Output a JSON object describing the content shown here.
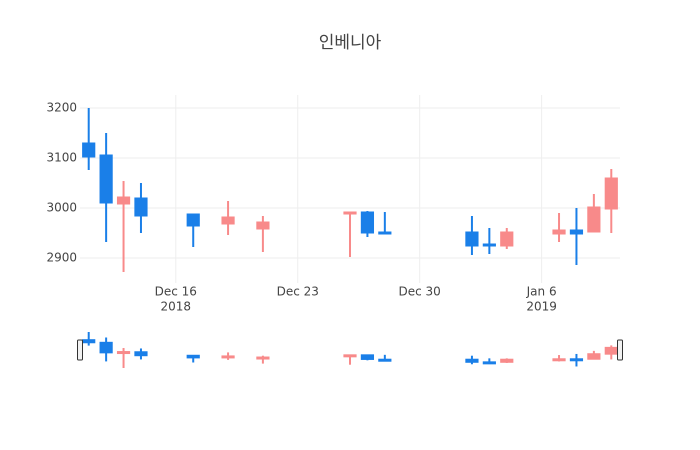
{
  "chart_data": {
    "type": "candlestick",
    "title": "인베니아",
    "x": [
      "2018-12-11",
      "2018-12-12",
      "2018-12-13",
      "2018-12-14",
      "2018-12-17",
      "2018-12-19",
      "2018-12-21",
      "2018-12-26",
      "2018-12-27",
      "2018-12-28",
      "2019-01-02",
      "2019-01-03",
      "2019-01-04",
      "2019-01-07",
      "2019-01-08",
      "2019-01-09",
      "2019-01-10"
    ],
    "open": [
      3130,
      3106,
      3008,
      3020,
      2988,
      2968,
      2958,
      2988,
      2992,
      2952,
      2952,
      2928,
      2924,
      2948,
      2956,
      2952,
      2998
    ],
    "high": [
      3200,
      3150,
      3054,
      3050,
      2988,
      3014,
      2984,
      2992,
      2994,
      2992,
      2984,
      2960,
      2960,
      2990,
      3000,
      3028,
      3078
    ],
    "low": [
      3076,
      2932,
      2872,
      2950,
      2922,
      2946,
      2912,
      2902,
      2942,
      2950,
      2906,
      2908,
      2918,
      2932,
      2886,
      2952,
      2950
    ],
    "close": [
      3102,
      3010,
      3022,
      2984,
      2964,
      2982,
      2972,
      2992,
      2950,
      2950,
      2924,
      2924,
      2952,
      2956,
      2948,
      3002,
      3060
    ],
    "increasing_color": "#f88a8a",
    "decreasing_color": "#1a7fe8",
    "xlim": [
      "2018-12-10T12",
      "2019-01-10T12"
    ],
    "xticks": [
      {
        "value": "2018-12-16",
        "label": "Dec 16"
      },
      {
        "value": "2018-12-23",
        "label": "Dec 23"
      },
      {
        "value": "2018-12-30",
        "label": "Dec 30"
      },
      {
        "value": "2019-01-06",
        "label": "Jan 6"
      }
    ],
    "xtick_years": [
      {
        "value": "2018-12-16",
        "label": "2018"
      },
      {
        "value": "2019-01-06",
        "label": "2019"
      }
    ],
    "ylim": [
      2850,
      3226
    ],
    "yticks": [
      2900,
      3000,
      3100,
      3200
    ],
    "grid": true,
    "range_slider": true
  }
}
